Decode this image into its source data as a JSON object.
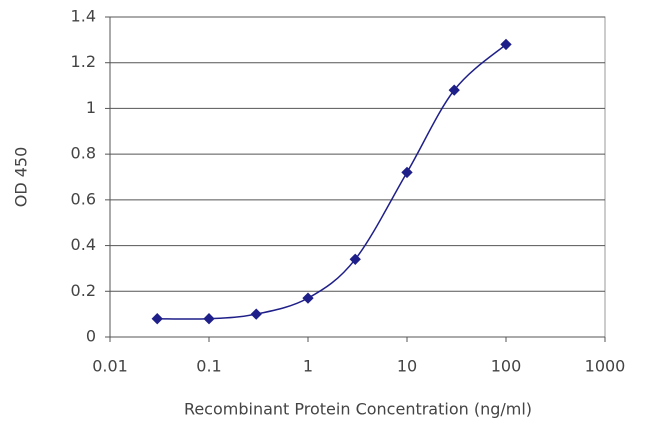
{
  "chart_data": {
    "type": "scatter",
    "x_label": "Recombinant Protein Concentration (ng/ml)",
    "y_label": "OD 450",
    "x": [
      0.03,
      0.1,
      0.3,
      1,
      3,
      10,
      30,
      100
    ],
    "values": [
      0.08,
      0.08,
      0.1,
      0.17,
      0.34,
      0.72,
      1.08,
      1.28
    ],
    "color": "#1f1f8a",
    "xscale": "log",
    "xlim": [
      0.01,
      1000
    ],
    "xticks": [
      0.01,
      0.1,
      1,
      10,
      100,
      1000
    ],
    "ylim": [
      0,
      1.4
    ],
    "yticks": [
      0,
      0.2,
      0.4,
      0.6,
      0.8,
      1,
      1.2,
      1.4
    ],
    "grid": true,
    "fit_curve": true
  }
}
